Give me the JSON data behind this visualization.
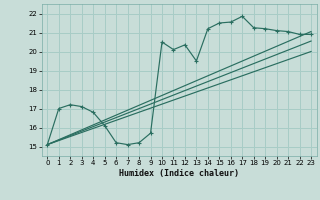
{
  "xlabel": "Humidex (Indice chaleur)",
  "bg_color": "#c8ddd8",
  "grid_color": "#a8ccc6",
  "line_color": "#2a6e60",
  "xlim": [
    -0.5,
    23.5
  ],
  "ylim": [
    14.5,
    22.5
  ],
  "xticks": [
    0,
    1,
    2,
    3,
    4,
    5,
    6,
    7,
    8,
    9,
    10,
    11,
    12,
    13,
    14,
    15,
    16,
    17,
    18,
    19,
    20,
    21,
    22,
    23
  ],
  "yticks": [
    15,
    16,
    17,
    18,
    19,
    20,
    21,
    22
  ],
  "curve1_x": [
    0,
    1,
    2,
    3,
    4,
    5,
    6,
    7,
    8,
    9,
    10,
    11,
    12,
    13,
    14,
    15,
    16,
    17,
    18,
    19,
    20,
    21,
    22,
    23
  ],
  "curve1_y": [
    15.1,
    17.0,
    17.2,
    17.1,
    16.8,
    16.1,
    15.2,
    15.1,
    15.2,
    15.7,
    20.5,
    20.1,
    20.35,
    19.5,
    21.2,
    21.5,
    21.55,
    21.85,
    21.25,
    21.2,
    21.1,
    21.05,
    20.9,
    20.9
  ],
  "line2_x": [
    0,
    23
  ],
  "line2_y": [
    15.1,
    21.05
  ],
  "line3_x": [
    0,
    23
  ],
  "line3_y": [
    15.1,
    20.0
  ],
  "line4_x": [
    0,
    23
  ],
  "line4_y": [
    15.1,
    20.55
  ]
}
